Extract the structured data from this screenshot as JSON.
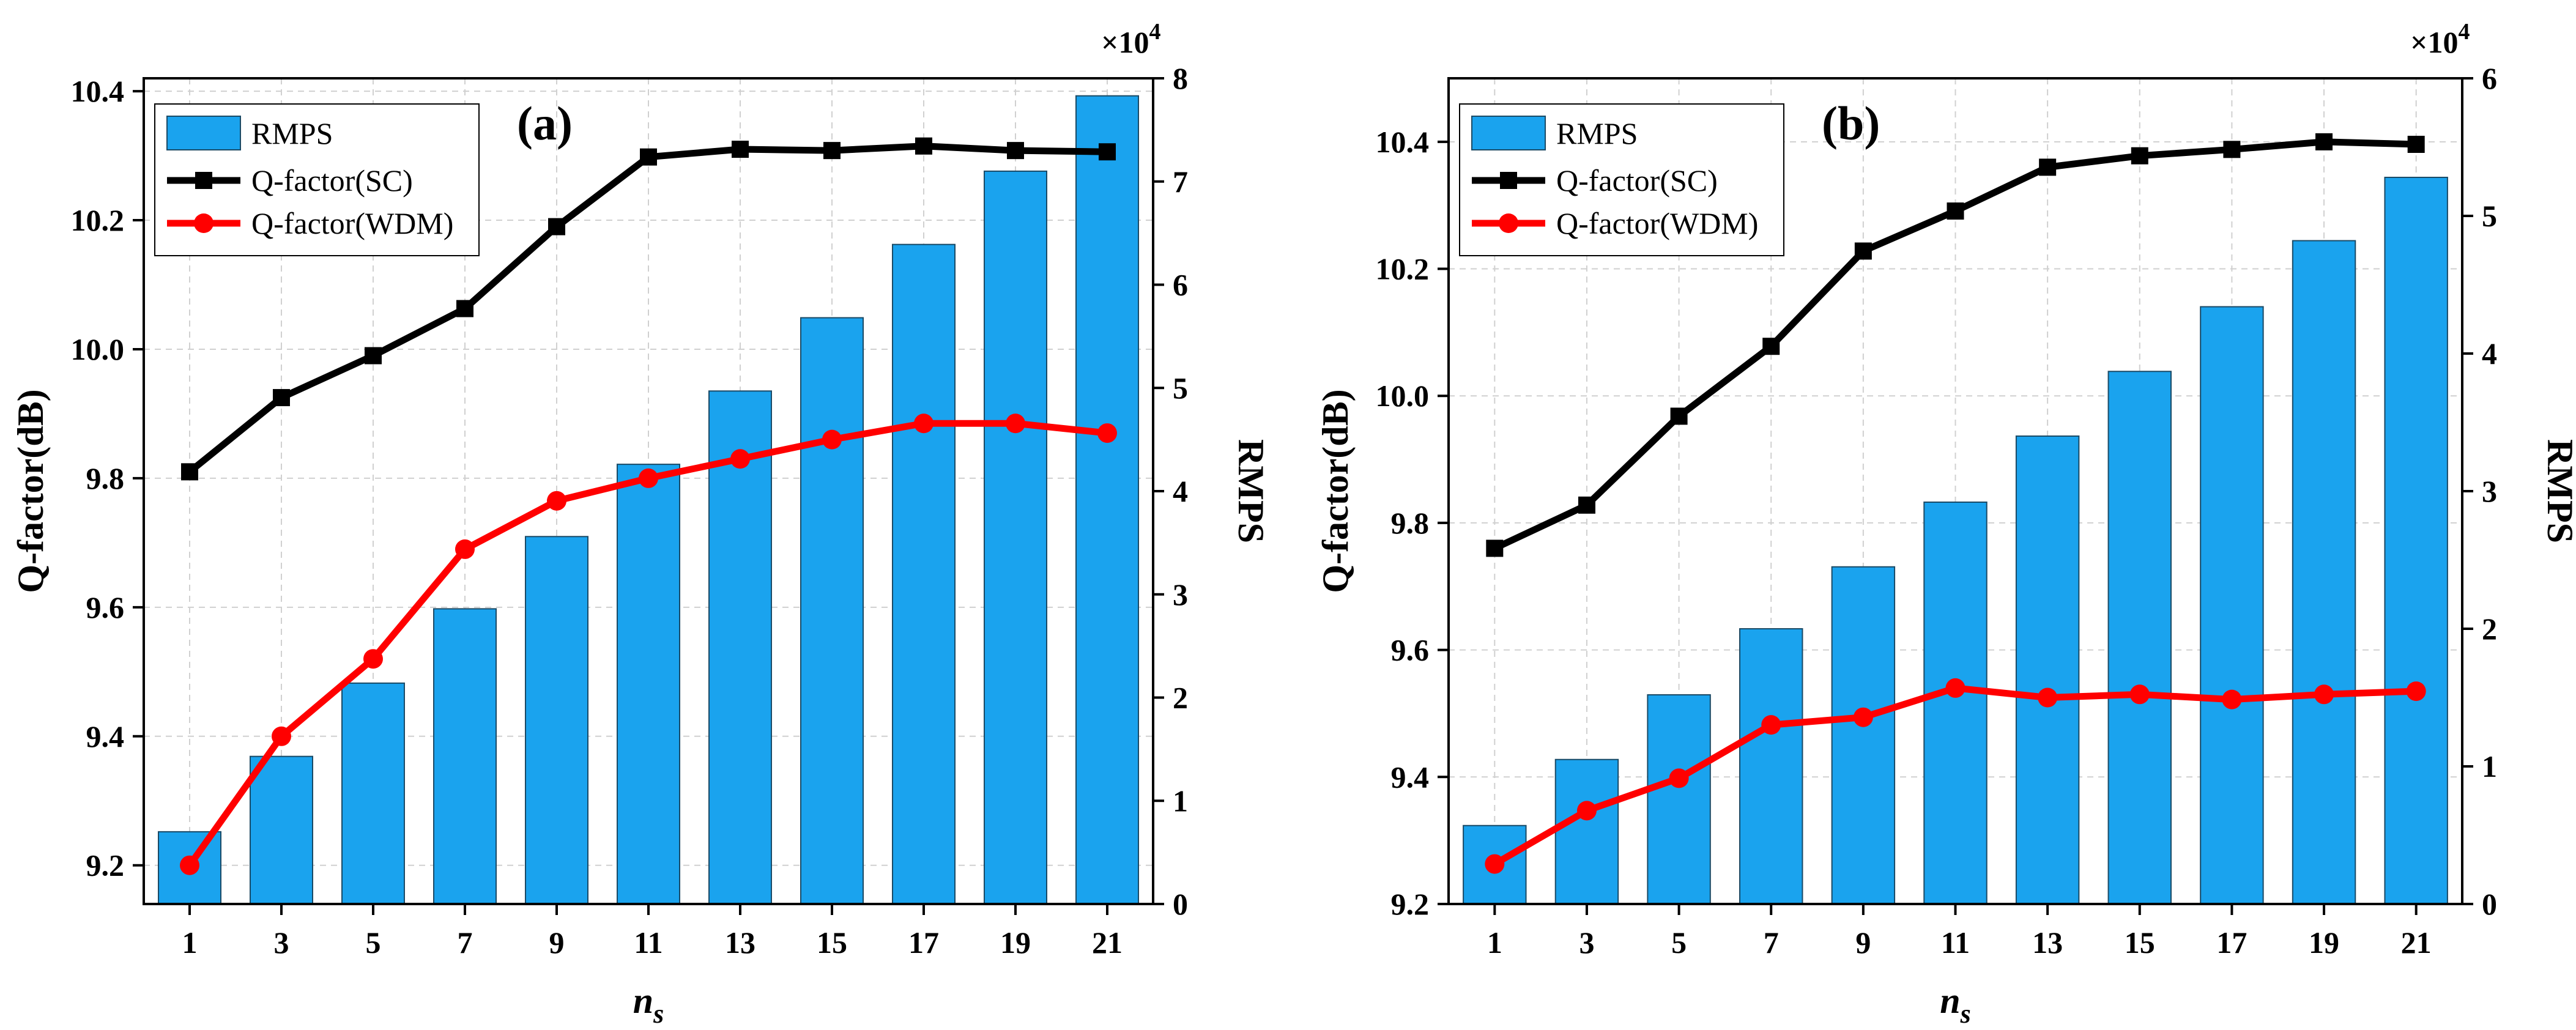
{
  "colors": {
    "bar": "#1aa3ee",
    "bar_edge": "#1a4a66",
    "sc_line": "#000000",
    "wdm_line": "#ff0000",
    "grid": "#d0d0d0"
  },
  "chart_data": [
    {
      "type": "bar+line",
      "panel_label": "(a)",
      "categories": [
        "1",
        "3",
        "5",
        "7",
        "9",
        "11",
        "13",
        "15",
        "17",
        "19",
        "21"
      ],
      "xlabel_base": "n",
      "xlabel_sub": "s",
      "ylabel_left": "Q-factor(dB)",
      "ylabel_right": "RMPS",
      "right_scale_label": "×10",
      "right_scale_exp": "4",
      "ylim_left": [
        9.14,
        10.42
      ],
      "yticks_left": [
        "9.2",
        "9.4",
        "9.6",
        "9.8",
        "10.0",
        "10.2",
        "10.4"
      ],
      "ylim_right": [
        0,
        8
      ],
      "yticks_right": [
        "0",
        "1",
        "2",
        "3",
        "4",
        "5",
        "6",
        "7",
        "8"
      ],
      "legend": [
        "RMPS",
        "Q-factor(SC)",
        "Q-factor(WDM)"
      ],
      "series": [
        {
          "name": "RMPS",
          "axis": "right",
          "kind": "bar",
          "values": [
            0.7,
            1.43,
            2.14,
            2.86,
            3.56,
            4.26,
            4.97,
            5.68,
            6.39,
            7.1,
            7.83
          ]
        },
        {
          "name": "Q-factor(SC)",
          "axis": "left",
          "kind": "line-square",
          "values": [
            9.81,
            9.925,
            9.99,
            10.063,
            10.19,
            10.298,
            10.31,
            10.308,
            10.315,
            10.308,
            10.306
          ]
        },
        {
          "name": "Q-factor(WDM)",
          "axis": "left",
          "kind": "line-circle",
          "values": [
            9.2,
            9.4,
            9.52,
            9.69,
            9.765,
            9.8,
            9.83,
            9.86,
            9.885,
            9.885,
            9.87
          ]
        }
      ]
    },
    {
      "type": "bar+line",
      "panel_label": "(b)",
      "categories": [
        "1",
        "3",
        "5",
        "7",
        "9",
        "11",
        "13",
        "15",
        "17",
        "19",
        "21"
      ],
      "xlabel_base": "n",
      "xlabel_sub": "s",
      "ylabel_left": "Q-factor(dB)",
      "ylabel_right": "RMPS",
      "right_scale_label": "×10",
      "right_scale_exp": "4",
      "ylim_left": [
        9.2,
        10.5
      ],
      "yticks_left": [
        "9.2",
        "9.4",
        "9.6",
        "9.8",
        "10.0",
        "10.2",
        "10.4"
      ],
      "ylim_right": [
        0,
        6
      ],
      "yticks_right": [
        "0",
        "1",
        "2",
        "3",
        "4",
        "5",
        "6"
      ],
      "legend": [
        "RMPS",
        "Q-factor(SC)",
        "Q-factor(WDM)"
      ],
      "series": [
        {
          "name": "RMPS",
          "axis": "right",
          "kind": "bar",
          "values": [
            0.57,
            1.05,
            1.52,
            2.0,
            2.45,
            2.92,
            3.4,
            3.87,
            4.34,
            4.82,
            5.28
          ]
        },
        {
          "name": "Q-factor(SC)",
          "axis": "left",
          "kind": "line-square",
          "values": [
            9.76,
            9.828,
            9.968,
            10.078,
            10.228,
            10.291,
            10.36,
            10.378,
            10.388,
            10.4,
            10.396
          ]
        },
        {
          "name": "Q-factor(WDM)",
          "axis": "left",
          "kind": "line-circle",
          "values": [
            9.263,
            9.347,
            9.398,
            9.482,
            9.494,
            9.54,
            9.525,
            9.53,
            9.522,
            9.53,
            9.535
          ]
        }
      ]
    }
  ]
}
